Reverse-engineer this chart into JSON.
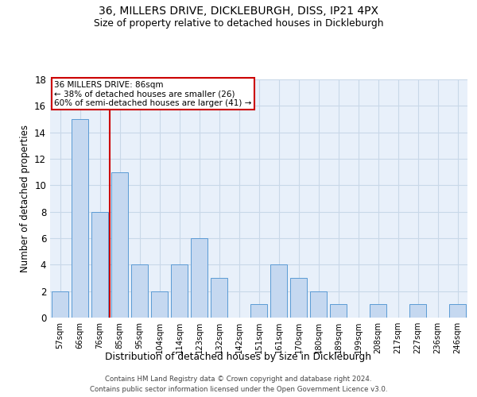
{
  "title1": "36, MILLERS DRIVE, DICKLEBURGH, DISS, IP21 4PX",
  "title2": "Size of property relative to detached houses in Dickleburgh",
  "xlabel": "Distribution of detached houses by size in Dickleburgh",
  "ylabel": "Number of detached properties",
  "categories": [
    "57sqm",
    "66sqm",
    "76sqm",
    "85sqm",
    "95sqm",
    "104sqm",
    "114sqm",
    "123sqm",
    "132sqm",
    "142sqm",
    "151sqm",
    "161sqm",
    "170sqm",
    "180sqm",
    "189sqm",
    "199sqm",
    "208sqm",
    "217sqm",
    "227sqm",
    "236sqm",
    "246sqm"
  ],
  "values": [
    2,
    15,
    8,
    11,
    4,
    2,
    4,
    6,
    3,
    0,
    1,
    4,
    3,
    2,
    1,
    0,
    1,
    0,
    1,
    0,
    1
  ],
  "bar_color": "#c5d8f0",
  "bar_edge_color": "#5b9bd5",
  "grid_color": "#c8d8e8",
  "bg_color": "#e8f0fa",
  "red_line_index": 3,
  "annotation_text": "36 MILLERS DRIVE: 86sqm\n← 38% of detached houses are smaller (26)\n60% of semi-detached houses are larger (41) →",
  "annotation_box_color": "#ffffff",
  "annotation_box_edge": "#cc0000",
  "footer1": "Contains HM Land Registry data © Crown copyright and database right 2024.",
  "footer2": "Contains public sector information licensed under the Open Government Licence v3.0.",
  "ylim": [
    0,
    18
  ],
  "yticks": [
    0,
    2,
    4,
    6,
    8,
    10,
    12,
    14,
    16,
    18
  ]
}
